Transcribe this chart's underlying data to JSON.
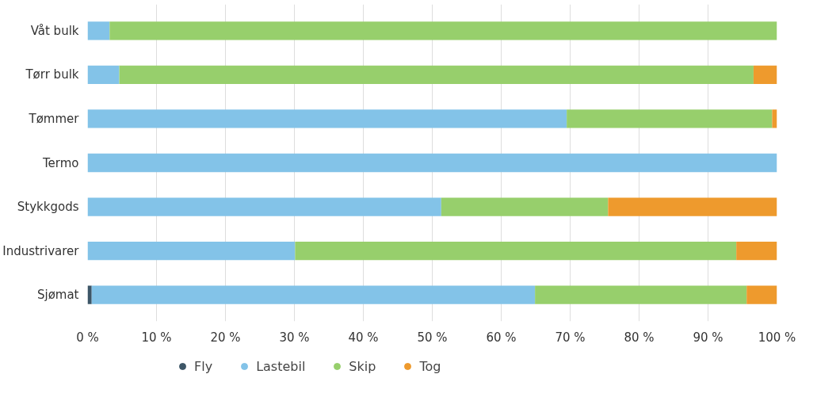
{
  "chart_data": {
    "type": "bar",
    "orientation": "horizontal",
    "stacked": true,
    "categories": [
      "Våt bulk",
      "Tørr bulk",
      "Tømmer",
      "Termo",
      "Stykkgods",
      "Industrivarer",
      "Sjømat"
    ],
    "series": [
      {
        "name": "Fly",
        "color": "#3d5667",
        "values": [
          0,
          0,
          0,
          0,
          0,
          0,
          0.6
        ]
      },
      {
        "name": "Lastebil",
        "color": "#83c3e8",
        "values": [
          3.2,
          4.6,
          69.5,
          100,
          51.3,
          30.1,
          64.3
        ]
      },
      {
        "name": "Skip",
        "color": "#97cf6c",
        "values": [
          96.8,
          92.0,
          29.8,
          0,
          24.2,
          64.0,
          30.7
        ]
      },
      {
        "name": "Tog",
        "color": "#ee9a2d",
        "values": [
          0,
          3.4,
          0.7,
          0,
          24.5,
          5.9,
          4.4
        ]
      }
    ],
    "xlim": [
      0,
      100
    ],
    "xticks": [
      {
        "value": 0,
        "label": "0 %"
      },
      {
        "value": 10,
        "label": "10 %"
      },
      {
        "value": 20,
        "label": "20 %"
      },
      {
        "value": 30,
        "label": "30 %"
      },
      {
        "value": 40,
        "label": "40 %"
      },
      {
        "value": 50,
        "label": "50 %"
      },
      {
        "value": 60,
        "label": "60 %"
      },
      {
        "value": 70,
        "label": "70 %"
      },
      {
        "value": 80,
        "label": "80 %"
      },
      {
        "value": 90,
        "label": "90 %"
      },
      {
        "value": 100,
        "label": "100 %"
      }
    ],
    "grid": "x",
    "legend": "bottom"
  }
}
